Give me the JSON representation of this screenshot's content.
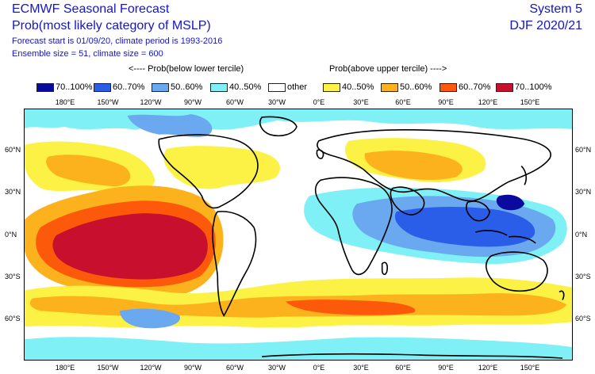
{
  "header": {
    "title": "ECMWF Seasonal Forecast",
    "subtitle": "Prob(most likely category of MSLP)",
    "forecast_info": "Forecast start is 01/09/20, climate period is 1993-2016",
    "ensemble_info": "Ensemble size = 51, climate size = 600",
    "system": "System 5",
    "season": "DJF 2020/21"
  },
  "legend": {
    "below_title": "<---- Prob(below lower tercile)",
    "above_title": "Prob(above upper tercile) ---->",
    "items": [
      {
        "label": "70..100%",
        "color": "#0a0a9e"
      },
      {
        "label": "60..70%",
        "color": "#2b5ee8"
      },
      {
        "label": "50..60%",
        "color": "#6aa8f0"
      },
      {
        "label": "40..50%",
        "color": "#7ff0f5"
      },
      {
        "label": "other",
        "color": "#ffffff"
      },
      {
        "label": "40..50%",
        "color": "#fcf246"
      },
      {
        "label": "50..60%",
        "color": "#fcb21c"
      },
      {
        "label": "60..70%",
        "color": "#fc5a0a"
      },
      {
        "label": "70..100%",
        "color": "#c8102e"
      }
    ]
  },
  "axes": {
    "lon_labels": [
      "180°E",
      "150°W",
      "120°W",
      "90°W",
      "60°W",
      "30°W",
      "0°E",
      "30°E",
      "60°E",
      "90°E",
      "120°E",
      "150°E"
    ],
    "lat_labels": [
      "60°N",
      "30°N",
      "0°N",
      "30°S",
      "60°S"
    ]
  }
}
